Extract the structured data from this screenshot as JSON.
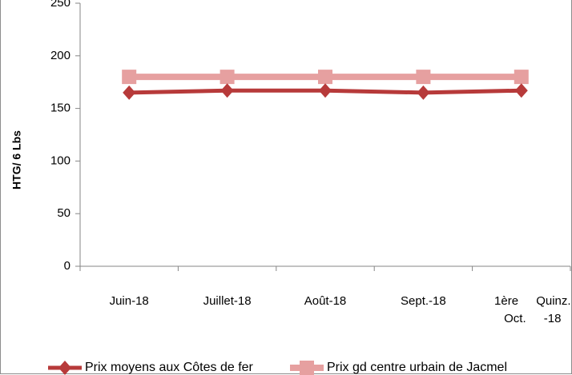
{
  "chart_data": {
    "type": "line",
    "y_label": "HTG/ 6 Lbs",
    "categories": [
      "Juin-18",
      "Juillet-18",
      "Août-18",
      "Sept.-18",
      "1ère Quinz. Oct. -18"
    ],
    "series": [
      {
        "name": "Prix moyens aux Côtes de fer",
        "color": "#b73a3a",
        "marker": "diamond",
        "values": [
          165,
          167,
          167,
          165,
          167
        ]
      },
      {
        "name": "Prix gd centre urbain de Jacmel",
        "color": "#e6a0a0",
        "marker": "square",
        "values": [
          180,
          180,
          180,
          180,
          180
        ]
      }
    ],
    "ylim": [
      0,
      250
    ],
    "yticks": [
      0,
      50,
      100,
      150,
      200,
      250
    ],
    "grid": false,
    "legend": "bottom"
  }
}
